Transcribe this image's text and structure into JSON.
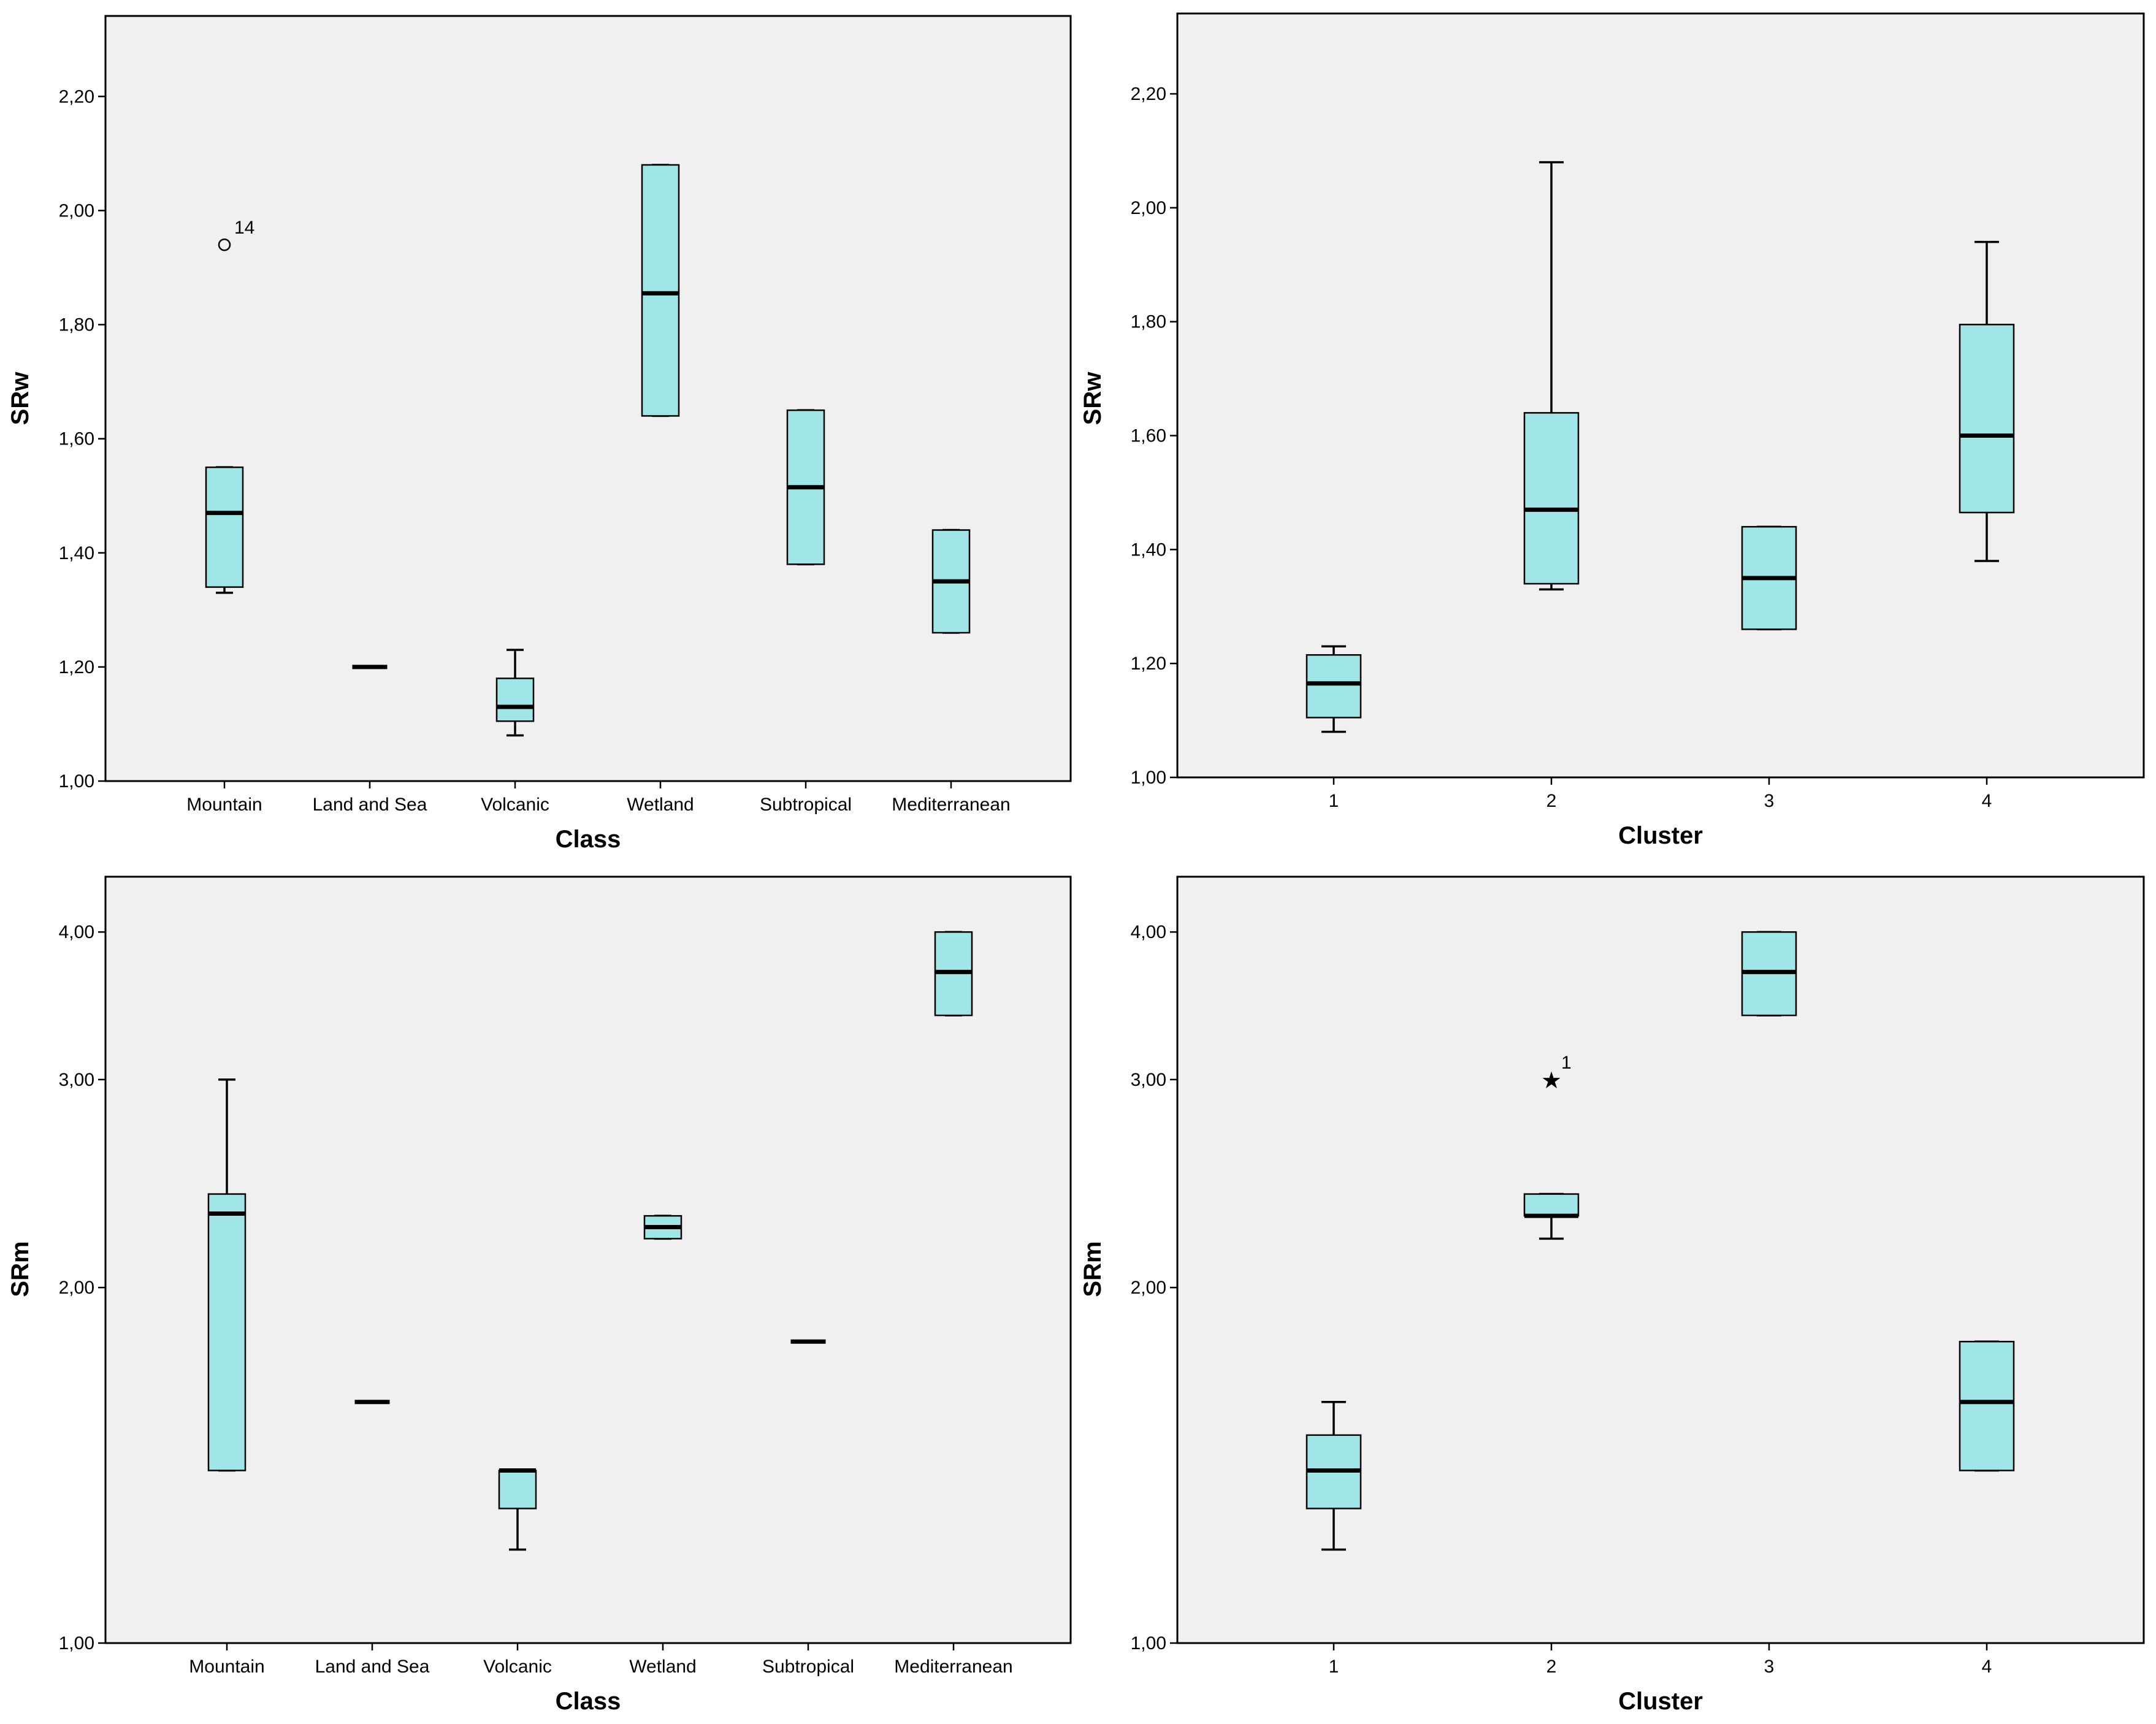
{
  "colors": {
    "plot_background": "#f0f0f0",
    "box_fill": "#a0e6e6",
    "stroke": "#000000",
    "page_background": "#ffffff"
  },
  "chart_data": [
    {
      "type": "boxplot",
      "title": "",
      "xlabel": "Class",
      "ylabel": "SRw",
      "ylim": [
        1.0,
        2.34
      ],
      "yticks": [
        1.0,
        1.2,
        1.4,
        1.6,
        1.8,
        2.0,
        2.2
      ],
      "ytick_labels": [
        "1,00",
        "1,20",
        "1,40",
        "1,60",
        "1,80",
        "2,00",
        "2,20"
      ],
      "categories": [
        "Mountain",
        "Land and Sea",
        "Volcanic",
        "Wetland",
        "Subtropical",
        "Mediterranean"
      ],
      "boxes": [
        {
          "min": 1.33,
          "q1": 1.34,
          "median": 1.47,
          "q3": 1.55,
          "max": 1.55
        },
        {
          "min": 1.2,
          "q1": 1.2,
          "median": 1.2,
          "q3": 1.2,
          "max": 1.2
        },
        {
          "min": 1.08,
          "q1": 1.105,
          "median": 1.13,
          "q3": 1.18,
          "max": 1.23
        },
        {
          "min": 1.64,
          "q1": 1.64,
          "median": 1.855,
          "q3": 2.08,
          "max": 2.08
        },
        {
          "min": 1.38,
          "q1": 1.38,
          "median": 1.515,
          "q3": 1.65,
          "max": 1.65
        },
        {
          "min": 1.26,
          "q1": 1.26,
          "median": 1.35,
          "q3": 1.44,
          "max": 1.44
        }
      ],
      "outliers": [
        {
          "category": "Mountain",
          "value": 1.94,
          "label": "14",
          "marker": "circle"
        }
      ]
    },
    {
      "type": "boxplot",
      "title": "",
      "xlabel": "Cluster",
      "ylabel": "SRw",
      "ylim": [
        1.0,
        2.34
      ],
      "yticks": [
        1.0,
        1.2,
        1.4,
        1.6,
        1.8,
        2.0,
        2.2
      ],
      "ytick_labels": [
        "1,00",
        "1,20",
        "1,40",
        "1,60",
        "1,80",
        "2,00",
        "2,20"
      ],
      "categories": [
        "1",
        "2",
        "3",
        "4"
      ],
      "boxes": [
        {
          "min": 1.08,
          "q1": 1.105,
          "median": 1.165,
          "q3": 1.215,
          "max": 1.23
        },
        {
          "min": 1.33,
          "q1": 1.34,
          "median": 1.47,
          "q3": 1.64,
          "max": 2.08
        },
        {
          "min": 1.26,
          "q1": 1.26,
          "median": 1.35,
          "q3": 1.44,
          "max": 1.44
        },
        {
          "min": 1.38,
          "q1": 1.465,
          "median": 1.6,
          "q3": 1.795,
          "max": 1.94
        }
      ],
      "outliers": []
    },
    {
      "type": "boxplot",
      "title": "",
      "xlabel": "Class",
      "ylabel": "SRm",
      "yscale": "log",
      "ylim": [
        1.0,
        4.45
      ],
      "yticks": [
        1.0,
        2.0,
        3.0,
        4.0
      ],
      "ytick_labels": [
        "1,00",
        "2,00",
        "3,00",
        "4,00"
      ],
      "categories": [
        "Mountain",
        "Land and Sea",
        "Volcanic",
        "Wetland",
        "Subtropical",
        "Mediterranean"
      ],
      "boxes": [
        {
          "min": 1.4,
          "q1": 1.4,
          "median": 2.31,
          "q3": 2.4,
          "max": 3.0
        },
        {
          "min": 1.6,
          "q1": 1.6,
          "median": 1.6,
          "q3": 1.6,
          "max": 1.6
        },
        {
          "min": 1.2,
          "q1": 1.3,
          "median": 1.4,
          "q3": 1.4,
          "max": 1.4
        },
        {
          "min": 2.2,
          "q1": 2.2,
          "median": 2.25,
          "q3": 2.3,
          "max": 2.3
        },
        {
          "min": 1.8,
          "q1": 1.8,
          "median": 1.8,
          "q3": 1.8,
          "max": 1.8
        },
        {
          "min": 3.4,
          "q1": 3.4,
          "median": 3.7,
          "q3": 4.0,
          "max": 4.0
        }
      ],
      "outliers": []
    },
    {
      "type": "boxplot",
      "title": "",
      "xlabel": "Cluster",
      "ylabel": "SRm",
      "yscale": "log",
      "ylim": [
        1.0,
        4.45
      ],
      "yticks": [
        1.0,
        2.0,
        3.0,
        4.0
      ],
      "ytick_labels": [
        "1,00",
        "2,00",
        "3,00",
        "4,00"
      ],
      "categories": [
        "1",
        "2",
        "3",
        "4"
      ],
      "boxes": [
        {
          "min": 1.2,
          "q1": 1.3,
          "median": 1.4,
          "q3": 1.5,
          "max": 1.6
        },
        {
          "min": 2.2,
          "q1": 2.3,
          "median": 2.3,
          "q3": 2.4,
          "max": 2.4
        },
        {
          "min": 3.4,
          "q1": 3.4,
          "median": 3.7,
          "q3": 4.0,
          "max": 4.0
        },
        {
          "min": 1.4,
          "q1": 1.4,
          "median": 1.6,
          "q3": 1.8,
          "max": 1.8
        }
      ],
      "outliers": [
        {
          "category": "2",
          "value": 3.0,
          "label": "1",
          "marker": "star"
        }
      ]
    }
  ]
}
